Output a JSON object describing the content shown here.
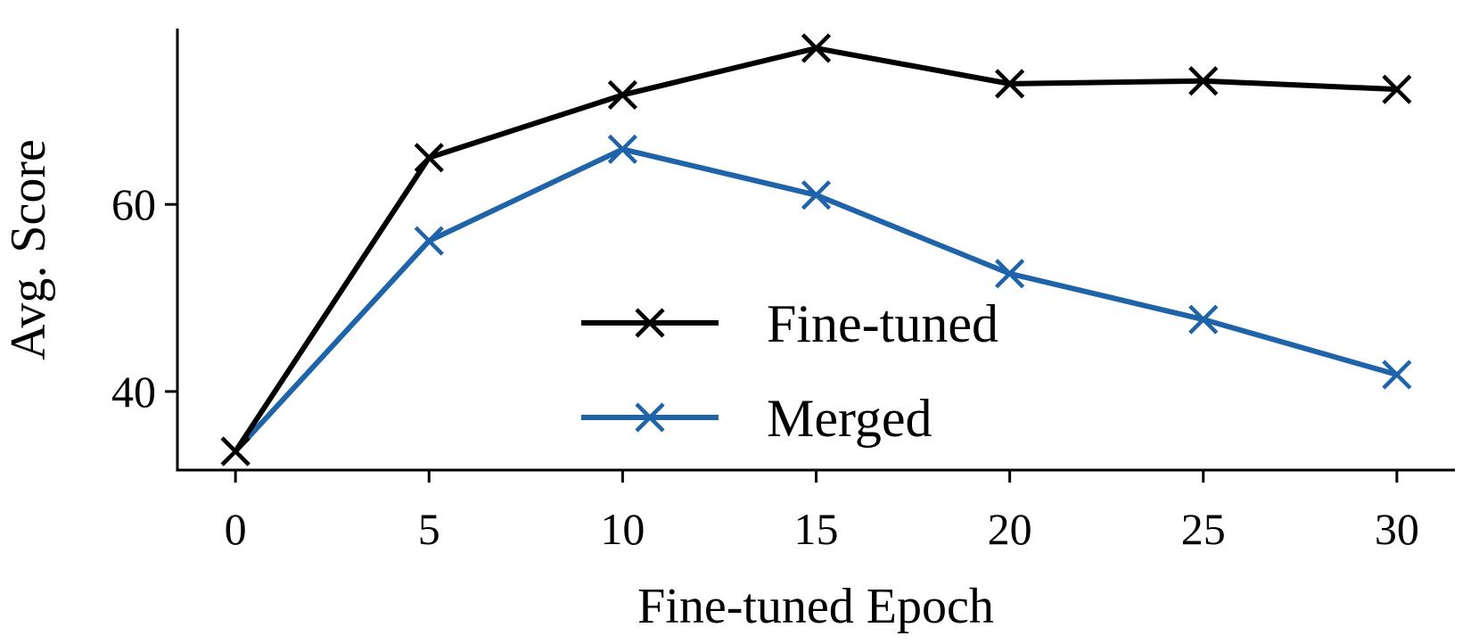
{
  "chart_data": {
    "type": "line",
    "title": "",
    "xlabel": "Fine-tuned Epoch",
    "ylabel": "Avg. Score",
    "x": [
      0,
      5,
      10,
      15,
      20,
      25,
      30
    ],
    "xticks": [
      "0",
      "5",
      "10",
      "15",
      "20",
      "25",
      "30"
    ],
    "yticks": [
      "40",
      "60"
    ],
    "xlim": [
      -1.5,
      31.5
    ],
    "ylim": [
      31.6,
      78.8
    ],
    "grid": false,
    "legend_position": "bottom-center",
    "series": [
      {
        "name": "Fine-tuned",
        "color": "#000000",
        "marker": "x",
        "values": [
          33.6,
          65.0,
          71.7,
          76.7,
          72.9,
          73.2,
          72.3
        ]
      },
      {
        "name": "Merged",
        "color": "#1f63a8",
        "marker": "x",
        "values": [
          33.6,
          56.1,
          65.9,
          61.0,
          52.6,
          47.7,
          41.8
        ]
      }
    ]
  }
}
